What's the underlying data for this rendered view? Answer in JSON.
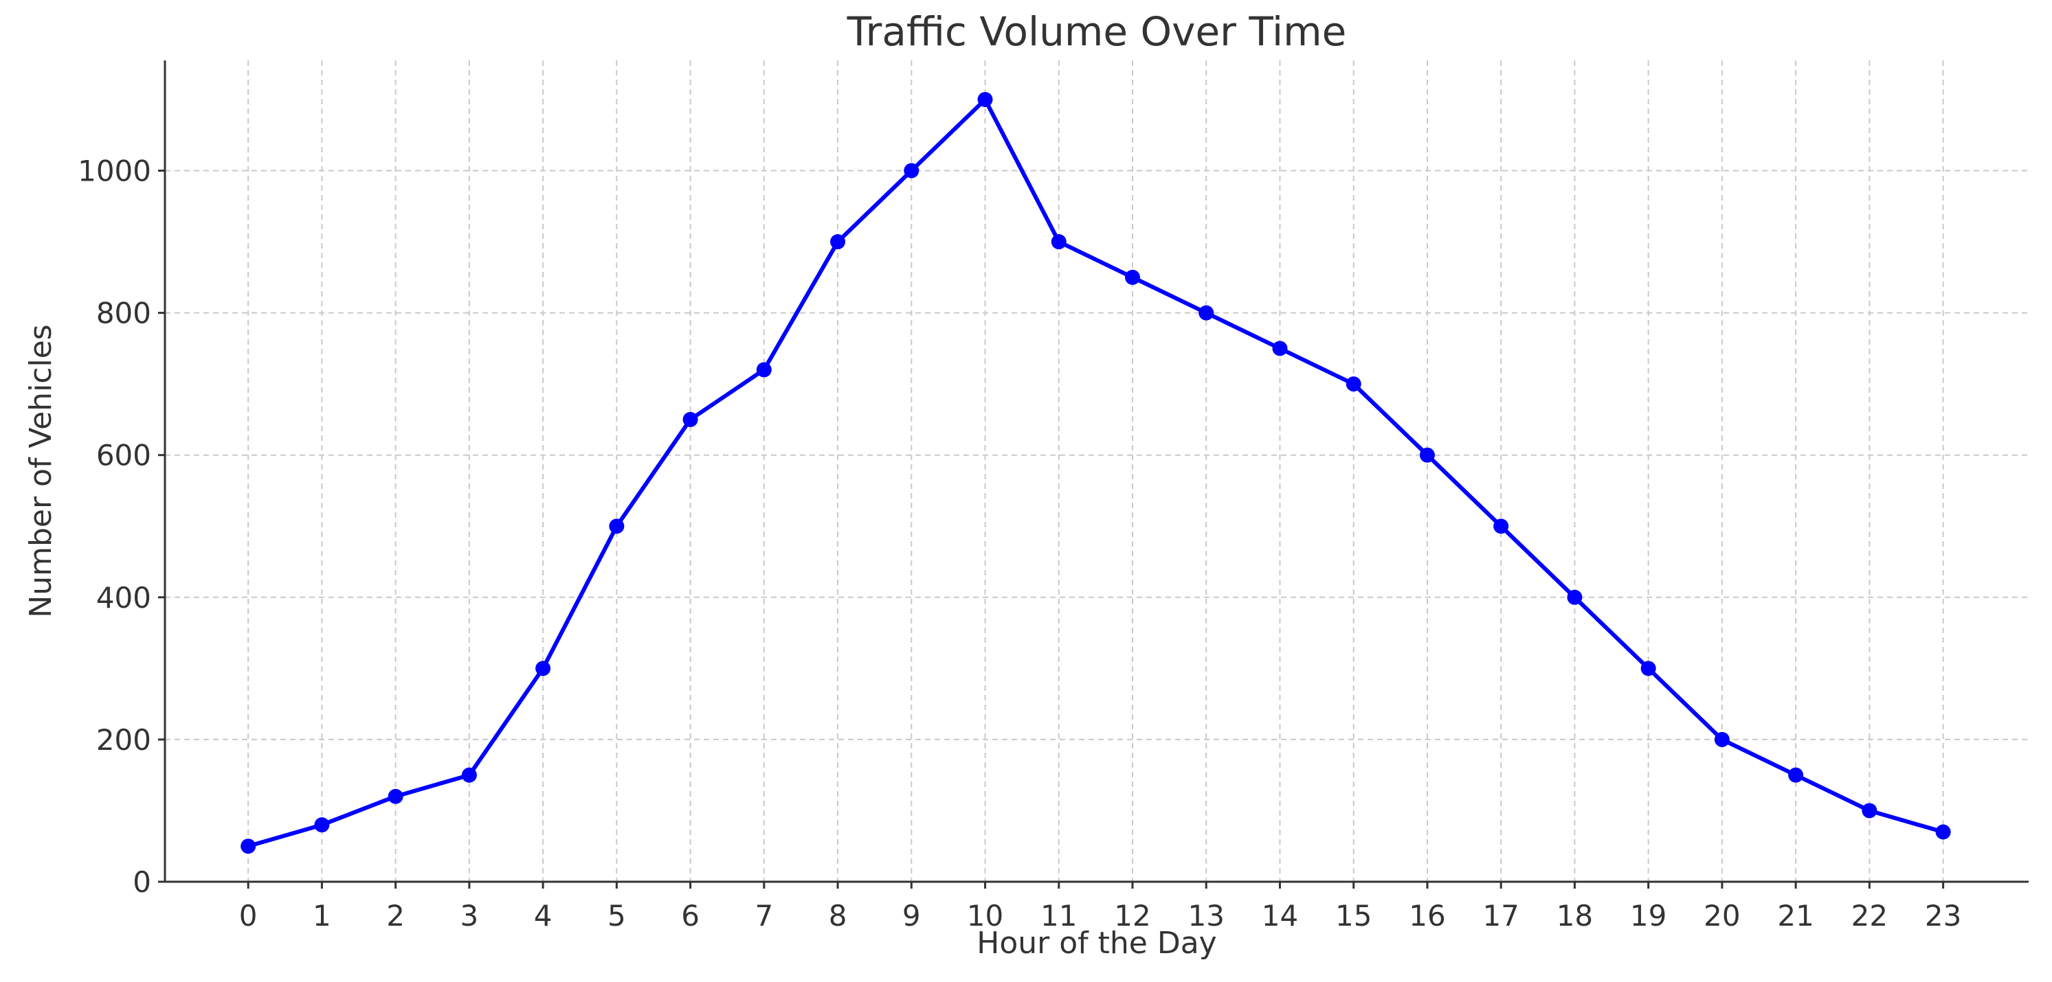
{
  "chart_data": {
    "type": "line",
    "title": "Traffic Volume Over Time",
    "xlabel": "Hour of the Day",
    "ylabel": "Number of Vehicles",
    "x": [
      0,
      1,
      2,
      3,
      4,
      5,
      6,
      7,
      8,
      9,
      10,
      11,
      12,
      13,
      14,
      15,
      16,
      17,
      18,
      19,
      20,
      21,
      22,
      23
    ],
    "series": [
      {
        "values": [
          50,
          80,
          120,
          150,
          300,
          500,
          650,
          720,
          900,
          1000,
          1100,
          900,
          850,
          800,
          750,
          700,
          600,
          500,
          400,
          300,
          200,
          150,
          100,
          70
        ],
        "color": "#0000ff",
        "marker": "circle"
      }
    ],
    "xticks": [
      0,
      1,
      2,
      3,
      4,
      5,
      6,
      7,
      8,
      9,
      10,
      11,
      12,
      13,
      14,
      15,
      16,
      17,
      18,
      19,
      20,
      21,
      22,
      23
    ],
    "yticks": [
      0,
      200,
      400,
      600,
      800,
      1000
    ],
    "xlim": [
      -1.13,
      24.16
    ],
    "ylim": [
      0,
      1155
    ],
    "grid": true
  }
}
